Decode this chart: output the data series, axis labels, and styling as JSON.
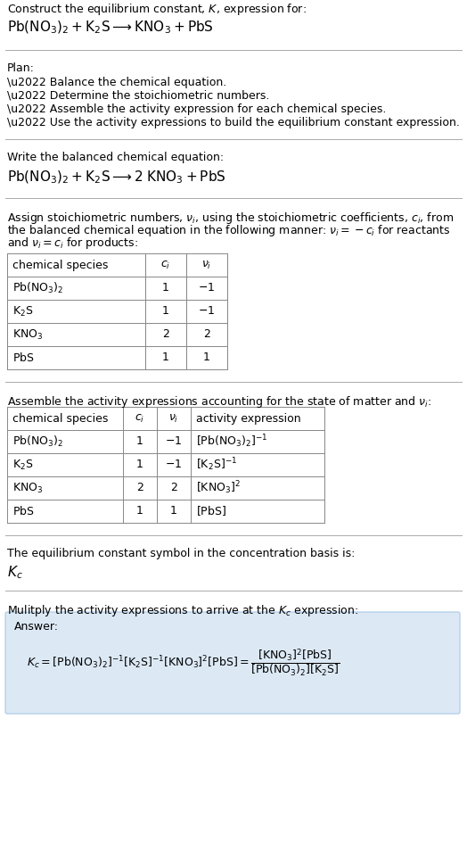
{
  "bg_color": "#ffffff",
  "text_color": "#000000",
  "title_line1": "Construct the equilibrium constant, $K$, expression for:",
  "title_line2": "$\\mathrm{Pb(NO_3)_2 + K_2S \\longrightarrow KNO_3 + PbS}$",
  "plan_header": "Plan:",
  "plan_items": [
    "\\u2022 Balance the chemical equation.",
    "\\u2022 Determine the stoichiometric numbers.",
    "\\u2022 Assemble the activity expression for each chemical species.",
    "\\u2022 Use the activity expressions to build the equilibrium constant expression."
  ],
  "balanced_header": "Write the balanced chemical equation:",
  "balanced_eq": "$\\mathrm{Pb(NO_3)_2 + K_2S \\longrightarrow 2\\;KNO_3 + PbS}$",
  "stoich_intro": "Assign stoichiometric numbers, $\\nu_i$, using the stoichiometric coefficients, $c_i$, from\nthe balanced chemical equation in the following manner: $\\nu_i = -c_i$ for reactants\nand $\\nu_i = c_i$ for products:",
  "table1_headers": [
    "chemical species",
    "$c_i$",
    "$\\nu_i$"
  ],
  "table1_rows": [
    [
      "$\\mathrm{Pb(NO_3)_2}$",
      "1",
      "$-1$"
    ],
    [
      "$\\mathrm{K_2S}$",
      "1",
      "$-1$"
    ],
    [
      "$\\mathrm{KNO_3}$",
      "2",
      "2"
    ],
    [
      "$\\mathrm{PbS}$",
      "1",
      "1"
    ]
  ],
  "activity_header": "Assemble the activity expressions accounting for the state of matter and $\\nu_i$:",
  "table2_headers": [
    "chemical species",
    "$c_i$",
    "$\\nu_i$",
    "activity expression"
  ],
  "table2_rows": [
    [
      "$\\mathrm{Pb(NO_3)_2}$",
      "1",
      "$-1$",
      "$[\\mathrm{Pb(NO_3)_2}]^{-1}$"
    ],
    [
      "$\\mathrm{K_2S}$",
      "1",
      "$-1$",
      "$[\\mathrm{K_2S}]^{-1}$"
    ],
    [
      "$\\mathrm{KNO_3}$",
      "2",
      "2",
      "$[\\mathrm{KNO_3}]^{2}$"
    ],
    [
      "$\\mathrm{PbS}$",
      "1",
      "1",
      "$[\\mathrm{PbS}]$"
    ]
  ],
  "kc_symbol_header": "The equilibrium constant symbol in the concentration basis is:",
  "kc_symbol": "$K_c$",
  "multiply_header": "Mulitply the activity expressions to arrive at the $K_c$ expression:",
  "answer_label": "Answer:",
  "answer_box_color": "#dce9f5",
  "answer_box_border": "#a8c8e8",
  "divider_color": "#aaaaaa",
  "table_border_color": "#888888",
  "font_size": 9.0,
  "title_font_size": 11.0,
  "eq_font_size": 11.0
}
